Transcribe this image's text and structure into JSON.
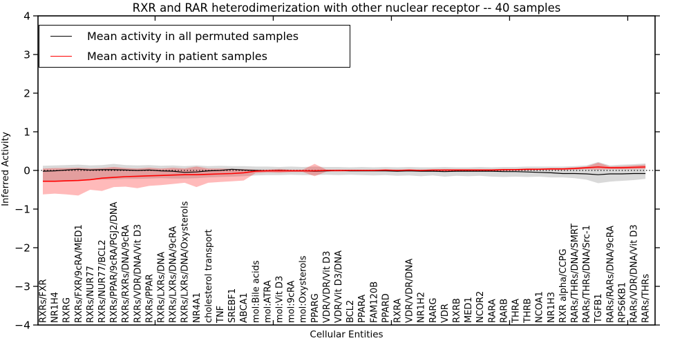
{
  "chart_data": {
    "type": "line",
    "title": "RXR and RAR heterodimerization with other nuclear receptor -- 40 samples",
    "xlabel": "Cellular Entities",
    "ylabel": "Inferred Activity",
    "ylim": [
      -4,
      4
    ],
    "yticks": [
      4,
      3,
      2,
      1,
      0,
      -1,
      -2,
      -3,
      -4
    ],
    "grid": false,
    "legend_position": "upper left",
    "zero_line": {
      "value": 0,
      "style": "dotted",
      "color": "#000000"
    },
    "x_major_tick_positions": [
      9,
      19,
      29,
      39,
      49
    ],
    "categories": [
      "RXRs/FXR",
      "NR1H4",
      "RXRG",
      "RXRs/FXR/9cRA/MED1",
      "RXRs/NUR77",
      "RXRs/NUR77/BCL2",
      "RXRs/PPAR/9cRA/PGJ2/DNA",
      "RXRs/RXRs/DNA/9cRA",
      "RXRs/VDR/DNA/Vit D3",
      "RXRs/PPAR",
      "RXRs/LXRs/DNA",
      "RXRs/LXRs/DNA/9cRA",
      "RXRs/LXRs/DNA/Oxysterols",
      "NR4A1",
      "cholesterol transport",
      "TNF",
      "SREBF1",
      "ABCA1",
      "mol:Bile acids",
      "mol:ATRA",
      "mol:Vit D3",
      "mol:9cRA",
      "mol:Oxysterols",
      "PPARG",
      "VDR/VDR/Vit D3",
      "VDR/Vit D3/DNA",
      "BCL2",
      "PPARA",
      "FAM120B",
      "PPARD",
      "RXRA",
      "VDR/VDR/DNA",
      "NR1H2",
      "RARG",
      "VDR",
      "RXRB",
      "MED1",
      "NCOR2",
      "RARA",
      "RARB",
      "THRA",
      "THRB",
      "NCOA1",
      "NR1H3",
      "RXR alpha/CCPG",
      "RARs/THRs/DNA/SMRT",
      "RARs/THRs/DNA/Src-1",
      "TGFB1",
      "RARs/RARs/DNA/9cRA",
      "RPS6KB1",
      "RARs/VDR/DNA/Vit D3",
      "RARs/THRs"
    ],
    "series": [
      {
        "name": "Mean activity in all permuted samples",
        "color": "#000000",
        "values": [
          -0.02,
          -0.01,
          0.01,
          0.03,
          0.01,
          0.02,
          0.02,
          0.01,
          0.0,
          0.01,
          -0.01,
          -0.02,
          -0.05,
          -0.04,
          -0.01,
          0.0,
          0.03,
          0.01,
          0.0,
          -0.01,
          0.0,
          -0.01,
          -0.01,
          -0.02,
          -0.01,
          0.0,
          -0.01,
          -0.01,
          -0.01,
          -0.01,
          -0.02,
          -0.01,
          -0.02,
          -0.02,
          -0.03,
          -0.02,
          -0.02,
          -0.02,
          -0.02,
          -0.03,
          -0.03,
          -0.04,
          -0.05,
          -0.06,
          -0.08,
          -0.08,
          -0.09,
          -0.11,
          -0.09,
          -0.09,
          -0.08,
          -0.08
        ],
        "band": {
          "upper": [
            0.12,
            0.13,
            0.14,
            0.15,
            0.13,
            0.14,
            0.17,
            0.14,
            0.13,
            0.14,
            0.12,
            0.13,
            0.11,
            0.13,
            0.11,
            0.12,
            0.11,
            0.11,
            0.1,
            0.1,
            0.09,
            0.1,
            0.09,
            0.1,
            0.09,
            0.09,
            0.08,
            0.09,
            0.08,
            0.09,
            0.08,
            0.09,
            0.08,
            0.08,
            0.09,
            0.08,
            0.08,
            0.09,
            0.08,
            0.09,
            0.09,
            0.1,
            0.1,
            0.1,
            0.1,
            0.11,
            0.13,
            0.22,
            0.13,
            0.15,
            0.16,
            0.18
          ],
          "lower": [
            -0.28,
            -0.27,
            -0.26,
            -0.25,
            -0.24,
            -0.24,
            -0.23,
            -0.22,
            -0.22,
            -0.21,
            -0.2,
            -0.21,
            -0.21,
            -0.2,
            -0.18,
            -0.17,
            -0.16,
            -0.15,
            -0.13,
            -0.12,
            -0.12,
            -0.11,
            -0.12,
            -0.12,
            -0.11,
            -0.12,
            -0.11,
            -0.12,
            -0.13,
            -0.12,
            -0.14,
            -0.13,
            -0.15,
            -0.13,
            -0.16,
            -0.14,
            -0.15,
            -0.14,
            -0.16,
            -0.17,
            -0.16,
            -0.17,
            -0.16,
            -0.18,
            -0.18,
            -0.2,
            -0.24,
            -0.33,
            -0.29,
            -0.27,
            -0.25,
            -0.22
          ]
        }
      },
      {
        "name": "Mean activity in patient samples",
        "color": "#ff0000",
        "values": [
          -0.28,
          -0.28,
          -0.27,
          -0.26,
          -0.24,
          -0.2,
          -0.18,
          -0.16,
          -0.15,
          -0.14,
          -0.13,
          -0.12,
          -0.11,
          -0.11,
          -0.1,
          -0.09,
          -0.08,
          -0.06,
          -0.02,
          -0.01,
          -0.01,
          -0.01,
          -0.01,
          -0.01,
          0.0,
          0.0,
          0.0,
          0.0,
          0.0,
          0.01,
          0.0,
          0.01,
          0.0,
          0.01,
          0.01,
          0.01,
          0.01,
          0.01,
          0.01,
          0.02,
          0.02,
          0.03,
          0.03,
          0.04,
          0.04,
          0.05,
          0.07,
          0.09,
          0.07,
          0.07,
          0.08,
          0.09
        ],
        "band": {
          "upper": [
            0.05,
            0.06,
            0.06,
            0.07,
            0.05,
            0.06,
            0.09,
            0.06,
            0.05,
            0.07,
            0.05,
            0.07,
            0.05,
            0.1,
            0.05,
            0.05,
            0.04,
            0.03,
            0.02,
            0.02,
            0.04,
            0.02,
            0.02,
            0.17,
            0.02,
            0.02,
            0.02,
            0.02,
            0.02,
            0.02,
            0.02,
            0.02,
            0.02,
            0.02,
            0.03,
            0.03,
            0.03,
            0.03,
            0.03,
            0.04,
            0.04,
            0.05,
            0.05,
            0.06,
            0.06,
            0.08,
            0.1,
            0.2,
            0.1,
            0.11,
            0.13,
            0.15
          ],
          "lower": [
            -0.62,
            -0.6,
            -0.62,
            -0.65,
            -0.5,
            -0.53,
            -0.43,
            -0.42,
            -0.46,
            -0.4,
            -0.38,
            -0.35,
            -0.32,
            -0.43,
            -0.32,
            -0.3,
            -0.28,
            -0.26,
            -0.07,
            -0.05,
            -0.06,
            -0.04,
            -0.04,
            -0.15,
            -0.03,
            -0.03,
            -0.02,
            -0.02,
            -0.02,
            -0.02,
            -0.02,
            -0.02,
            -0.02,
            -0.02,
            -0.02,
            -0.02,
            -0.01,
            -0.01,
            -0.01,
            -0.01,
            0.0,
            0.0,
            0.01,
            0.01,
            0.01,
            0.02,
            0.03,
            0.02,
            0.03,
            0.03,
            0.03,
            0.04
          ]
        }
      }
    ]
  }
}
